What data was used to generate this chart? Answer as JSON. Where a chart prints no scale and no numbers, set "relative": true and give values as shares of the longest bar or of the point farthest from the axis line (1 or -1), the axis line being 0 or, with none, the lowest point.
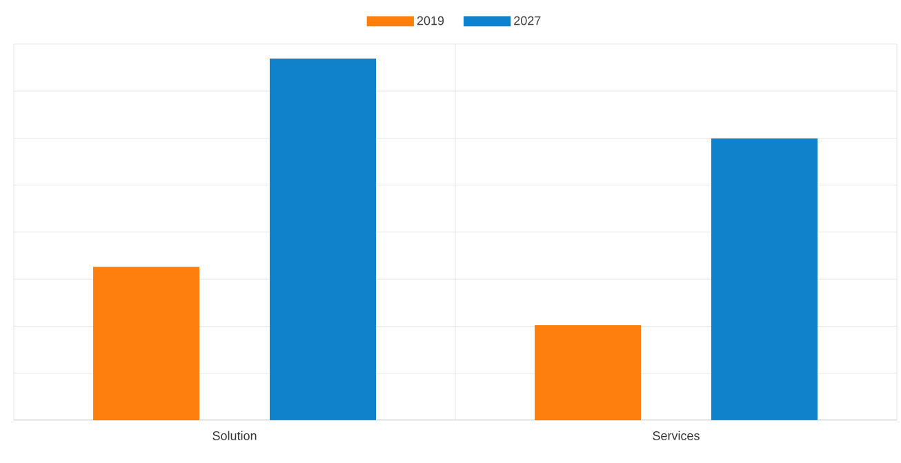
{
  "chart_data": {
    "type": "bar",
    "relative": true,
    "categories": [
      "Solution",
      "Services"
    ],
    "series": [
      {
        "name": "2019",
        "color": "#ff7f0e",
        "values": [
          0.424,
          0.263
        ]
      },
      {
        "name": "2027",
        "color": "#1082cc",
        "values": [
          1,
          0.779
        ]
      }
    ],
    "grid": true,
    "legend": "top"
  }
}
